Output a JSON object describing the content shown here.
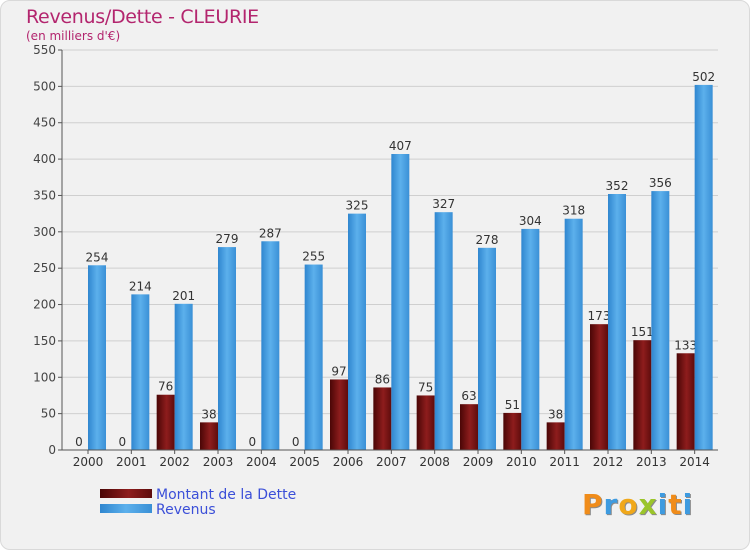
{
  "chart_data": {
    "type": "bar",
    "title": "Revenus/Dette - CLEURIE",
    "subtitle": "(en milliers d'€)",
    "categories": [
      "2000",
      "2001",
      "2002",
      "2003",
      "2004",
      "2005",
      "2006",
      "2007",
      "2008",
      "2009",
      "2010",
      "2011",
      "2012",
      "2013",
      "2014"
    ],
    "series": [
      {
        "name": "Montant de la Dette",
        "color": "#7a1414",
        "values": [
          0,
          0,
          76,
          38,
          0,
          0,
          97,
          86,
          75,
          63,
          51,
          38,
          173,
          151,
          133
        ]
      },
      {
        "name": "Revenus",
        "color": "#4a9fe0",
        "values": [
          254,
          214,
          201,
          279,
          287,
          255,
          325,
          407,
          327,
          278,
          304,
          318,
          352,
          356,
          502
        ]
      }
    ],
    "ylim": [
      0,
      550
    ],
    "yticks": [
      0,
      50,
      100,
      150,
      200,
      250,
      300,
      350,
      400,
      450,
      500,
      550
    ],
    "grid": true,
    "legend": "bottom-left"
  },
  "logo": {
    "letters": [
      "P",
      "r",
      "o",
      "x",
      "i",
      "t",
      "i"
    ],
    "colors": [
      "#f08c1a",
      "#3e9be0",
      "#f0a81a",
      "#9bc52a",
      "#3e9be0",
      "#f08c1a",
      "#3e9be0"
    ]
  }
}
